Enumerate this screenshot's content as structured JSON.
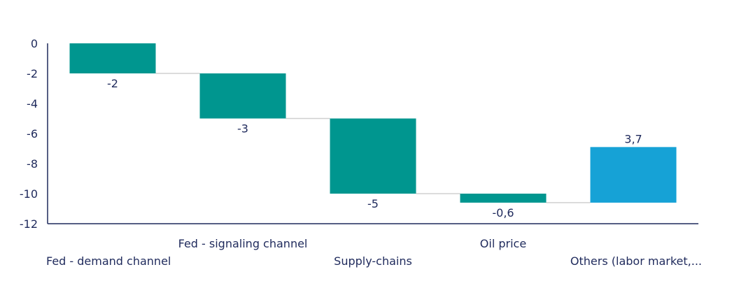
{
  "chart_data": {
    "type": "bar",
    "subtype": "waterfall",
    "title": "",
    "xlabel": "",
    "ylabel": "",
    "ylim": [
      -12,
      0
    ],
    "yticks": [
      0,
      -2,
      -4,
      -6,
      -8,
      -10,
      -12
    ],
    "ytick_labels": [
      "0",
      "-2",
      "-4",
      "-6",
      "-8",
      "-10",
      "-12"
    ],
    "categories": [
      "Fed - demand channel",
      "Fed - signaling channel",
      "Supply-chains",
      "Oil price",
      "Others (labor market,..."
    ],
    "values": [
      -2,
      -3,
      -5,
      -0.6,
      3.7
    ],
    "data_labels": [
      "-2",
      "-3",
      "-5",
      "-0,6",
      "3,7"
    ],
    "colors": {
      "negative": "#00968f",
      "positive": "#16a2d6",
      "axis": "#1f2a5c",
      "connector": "#d0d0d0"
    },
    "grid": false,
    "legend": "none"
  }
}
